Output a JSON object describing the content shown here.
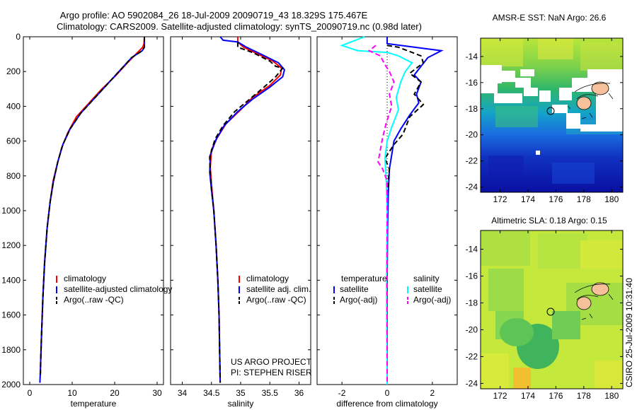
{
  "header": {
    "line1": "Argo profile: AO 5902084_26 18-Jul-2009 20090719_43 18.329S 175.467E",
    "line2": "Climatology: CARS2009. Satellite-adjusted climatology: synTS_20090719.nc (0.98d later)"
  },
  "side_label": "CSIRO 25-Jul-2009 10:31:40",
  "colors": {
    "red": "#ff0000",
    "blue": "#0000ff",
    "black": "#000000",
    "cyan": "#00ffff",
    "magenta": "#ff00ff",
    "dotted": "#000000"
  },
  "chart_data": [
    {
      "type": "line",
      "panel": "temperature",
      "xlabel": "temperature",
      "ylabel": "",
      "xlim": [
        -1.5,
        31.5
      ],
      "ylim": [
        2000,
        0
      ],
      "xticks": [
        0,
        10,
        20,
        30
      ],
      "yticks": [
        0,
        200,
        400,
        600,
        800,
        1000,
        1200,
        1400,
        1600,
        1800,
        2000
      ],
      "legend": {
        "position": "bottom",
        "entries": [
          "climatology",
          "satellite-adjusted climatology",
          "Argo(..raw -QC)"
        ]
      },
      "series": [
        {
          "name": "climatology",
          "color": "red",
          "dash": "solid",
          "points": [
            [
              27,
              0
            ],
            [
              26.9,
              40
            ],
            [
              26.6,
              60
            ],
            [
              25,
              100
            ],
            [
              23,
              150
            ],
            [
              20,
              230
            ],
            [
              17,
              300
            ],
            [
              14,
              380
            ],
            [
              11,
              460
            ],
            [
              9,
              550
            ],
            [
              7.5,
              640
            ],
            [
              6.5,
              730
            ],
            [
              5.5,
              830
            ],
            [
              4.8,
              950
            ],
            [
              4.1,
              1100
            ],
            [
              3.5,
              1300
            ],
            [
              3.1,
              1500
            ],
            [
              2.8,
              1700
            ],
            [
              2.6,
              1850
            ],
            [
              2.5,
              1950
            ]
          ]
        },
        {
          "name": "satellite-adjusted climatology",
          "color": "blue",
          "dash": "solid",
          "points": [
            [
              27,
              0
            ],
            [
              27,
              60
            ],
            [
              26.5,
              80
            ],
            [
              24,
              120
            ],
            [
              21,
              200
            ],
            [
              18,
              280
            ],
            [
              15,
              360
            ],
            [
              12,
              440
            ],
            [
              9.5,
              530
            ],
            [
              7.8,
              620
            ],
            [
              6.6,
              720
            ],
            [
              5.6,
              830
            ],
            [
              4.8,
              950
            ],
            [
              4.1,
              1100
            ],
            [
              3.5,
              1300
            ],
            [
              3.1,
              1500
            ],
            [
              2.8,
              1700
            ],
            [
              2.6,
              1850
            ],
            [
              2.4,
              1990
            ]
          ]
        },
        {
          "name": "Argo(..raw -QC)",
          "color": "black",
          "dash": "dashed",
          "points": [
            [
              27,
              0
            ],
            [
              27,
              60
            ],
            [
              26.5,
              80
            ],
            [
              24,
              120
            ],
            [
              21,
              200
            ],
            [
              18,
              280
            ],
            [
              15,
              360
            ],
            [
              12,
              440
            ],
            [
              9.5,
              530
            ],
            [
              7.8,
              620
            ],
            [
              6.6,
              720
            ],
            [
              5.6,
              830
            ],
            [
              4.8,
              950
            ],
            [
              4.1,
              1100
            ],
            [
              3.5,
              1300
            ],
            [
              3.1,
              1500
            ],
            [
              2.8,
              1700
            ],
            [
              2.6,
              1850
            ],
            [
              2.5,
              1960
            ]
          ]
        }
      ]
    },
    {
      "type": "line",
      "panel": "salinity",
      "xlabel": "salinity",
      "ylabel": "",
      "xlim": [
        33.8,
        36.2
      ],
      "ylim": [
        2000,
        0
      ],
      "xticks": [
        34,
        34.5,
        35,
        35.5,
        36
      ],
      "yticks": [
        0,
        200,
        400,
        600,
        800,
        1000,
        1200,
        1400,
        1600,
        1800,
        2000
      ],
      "legend": {
        "position": "bottom",
        "entries": [
          "climatology",
          "satellite adj. clim.",
          "Argo(..raw -QC)"
        ]
      },
      "annotation": [
        "US ARGO PROJECT",
        "PI: STEPHEN RISER"
      ],
      "series": [
        {
          "name": "climatology",
          "color": "red",
          "dash": "solid",
          "points": [
            [
              34.95,
              0
            ],
            [
              34.95,
              30
            ],
            [
              35.05,
              60
            ],
            [
              35.3,
              100
            ],
            [
              35.55,
              140
            ],
            [
              35.7,
              180
            ],
            [
              35.68,
              220
            ],
            [
              35.5,
              280
            ],
            [
              35.2,
              350
            ],
            [
              35.0,
              420
            ],
            [
              34.75,
              500
            ],
            [
              34.6,
              580
            ],
            [
              34.5,
              650
            ],
            [
              34.48,
              750
            ],
            [
              34.5,
              850
            ],
            [
              34.54,
              1000
            ],
            [
              34.58,
              1200
            ],
            [
              34.61,
              1400
            ],
            [
              34.63,
              1600
            ],
            [
              34.64,
              1800
            ],
            [
              34.65,
              1990
            ]
          ]
        },
        {
          "name": "satellite adj. clim.",
          "color": "blue",
          "dash": "solid",
          "points": [
            [
              34.65,
              0
            ],
            [
              34.7,
              20
            ],
            [
              34.95,
              30
            ],
            [
              35.1,
              60
            ],
            [
              35.35,
              100
            ],
            [
              35.65,
              150
            ],
            [
              35.75,
              190
            ],
            [
              35.72,
              230
            ],
            [
              35.5,
              290
            ],
            [
              35.2,
              360
            ],
            [
              34.95,
              430
            ],
            [
              34.72,
              510
            ],
            [
              34.58,
              590
            ],
            [
              34.48,
              680
            ],
            [
              34.47,
              780
            ],
            [
              34.5,
              880
            ],
            [
              34.54,
              1000
            ],
            [
              34.58,
              1200
            ],
            [
              34.61,
              1400
            ],
            [
              34.63,
              1600
            ],
            [
              34.64,
              1800
            ],
            [
              34.65,
              1990
            ]
          ]
        },
        {
          "name": "Argo(..raw -QC)",
          "color": "black",
          "dash": "dashed",
          "points": [
            [
              34.95,
              30
            ],
            [
              34.95,
              60
            ],
            [
              35.2,
              90
            ],
            [
              35.5,
              140
            ],
            [
              35.6,
              170
            ],
            [
              35.72,
              180
            ],
            [
              35.6,
              230
            ],
            [
              35.4,
              290
            ],
            [
              35.15,
              360
            ],
            [
              34.9,
              430
            ],
            [
              34.7,
              510
            ],
            [
              34.56,
              590
            ],
            [
              34.47,
              690
            ],
            [
              34.48,
              780
            ],
            [
              34.5,
              880
            ],
            [
              34.54,
              1000
            ],
            [
              34.58,
              1200
            ],
            [
              34.61,
              1400
            ],
            [
              34.63,
              1600
            ],
            [
              34.64,
              1800
            ],
            [
              34.65,
              1990
            ]
          ]
        }
      ]
    },
    {
      "type": "line",
      "panel": "difference",
      "xlabel": "difference from climatology",
      "ylabel": "",
      "xlim": [
        -3.1,
        3.1
      ],
      "ylim": [
        2000,
        0
      ],
      "xticks": [
        -2,
        0,
        2
      ],
      "yticks": [
        0,
        200,
        400,
        600,
        800,
        1000,
        1200,
        1400,
        1600,
        1800,
        2000
      ],
      "legend": {
        "position": "bottom",
        "groups": [
          {
            "title": "temperature",
            "entries": [
              "satellite",
              "Argo(-adj)"
            ]
          },
          {
            "title": "salinity",
            "entries": [
              "satellite",
              "Argo(-adj)"
            ]
          }
        ]
      },
      "series": [
        {
          "name": "satellite",
          "group": "temperature",
          "color": "blue",
          "dash": "solid",
          "points": [
            [
              0,
              0
            ],
            [
              0,
              40
            ],
            [
              2.4,
              80
            ],
            [
              1.8,
              120
            ],
            [
              1.5,
              170
            ],
            [
              1.2,
              220
            ],
            [
              1.5,
              260
            ],
            [
              1.3,
              330
            ],
            [
              1.4,
              380
            ],
            [
              1.0,
              450
            ],
            [
              0.6,
              530
            ],
            [
              0.3,
              600
            ],
            [
              0.2,
              680
            ],
            [
              0.1,
              760
            ],
            [
              0.05,
              900
            ],
            [
              0.02,
              1100
            ],
            [
              0,
              1400
            ],
            [
              0,
              1700
            ],
            [
              0,
              2000
            ]
          ]
        },
        {
          "name": "Argo(-adj)",
          "group": "temperature",
          "color": "black",
          "dash": "dashed",
          "points": [
            [
              0,
              50
            ],
            [
              0.5,
              60
            ],
            [
              1.5,
              110
            ],
            [
              1.6,
              150
            ],
            [
              1.0,
              210
            ],
            [
              1.5,
              260
            ],
            [
              1.2,
              330
            ],
            [
              1.6,
              390
            ],
            [
              1.0,
              460
            ],
            [
              0.7,
              560
            ],
            [
              0.3,
              620
            ],
            [
              0.1,
              660
            ],
            [
              -0.1,
              700
            ],
            [
              0.1,
              760
            ],
            [
              0,
              900
            ],
            [
              0,
              1100
            ],
            [
              0,
              1400
            ],
            [
              0,
              1700
            ],
            [
              0,
              2000
            ]
          ]
        },
        {
          "name": "satellite",
          "group": "salinity",
          "color": "cyan",
          "dash": "solid",
          "points": [
            [
              -1.0,
              0
            ],
            [
              -2.0,
              50
            ],
            [
              -1.3,
              80
            ],
            [
              0,
              90
            ],
            [
              0.5,
              110
            ],
            [
              1.1,
              150
            ],
            [
              0.8,
              200
            ],
            [
              0.6,
              260
            ],
            [
              0.4,
              350
            ],
            [
              0.5,
              420
            ],
            [
              0.2,
              520
            ],
            [
              0,
              600
            ],
            [
              -0.1,
              700
            ],
            [
              -0.05,
              800
            ],
            [
              0,
              1000
            ],
            [
              -0.03,
              1400
            ],
            [
              -0.02,
              1700
            ],
            [
              0,
              2000
            ]
          ]
        },
        {
          "name": "Argo(-adj)",
          "group": "salinity",
          "color": "magenta",
          "dash": "dashed",
          "points": [
            [
              -0.5,
              50
            ],
            [
              -0.8,
              80
            ],
            [
              -0.3,
              110
            ],
            [
              -0.1,
              160
            ],
            [
              0.1,
              200
            ],
            [
              0.3,
              260
            ],
            [
              0.1,
              330
            ],
            [
              0.2,
              400
            ],
            [
              -0.05,
              500
            ],
            [
              -0.2,
              580
            ],
            [
              -0.3,
              650
            ],
            [
              -0.4,
              720
            ],
            [
              -0.2,
              760
            ],
            [
              0,
              830
            ],
            [
              0,
              1000
            ],
            [
              0,
              1400
            ],
            [
              0,
              1700
            ],
            [
              0,
              2000
            ]
          ]
        }
      ]
    },
    {
      "type": "heatmap",
      "panel": "map-top",
      "title": "AMSR-E SST: NaN Argo: 26.6",
      "xlim": [
        170.6,
        180.8
      ],
      "ylim": [
        -24.4,
        -12.6
      ],
      "xticks": [
        172,
        174,
        176,
        178,
        180
      ],
      "yticks": [
        -14,
        -16,
        -18,
        -20,
        -22,
        -24
      ],
      "argo_position": [
        175.467,
        -18.329
      ]
    },
    {
      "type": "heatmap",
      "panel": "map-bottom",
      "title": "Altimetric SLA: 0.18 Argo: 0.15",
      "xlim": [
        170.6,
        180.8
      ],
      "ylim": [
        -24.4,
        -12.6
      ],
      "xticks": [
        172,
        174,
        176,
        178,
        180
      ],
      "yticks": [
        -14,
        -16,
        -18,
        -20,
        -22,
        -24
      ],
      "argo_position": [
        175.467,
        -18.329
      ]
    }
  ]
}
